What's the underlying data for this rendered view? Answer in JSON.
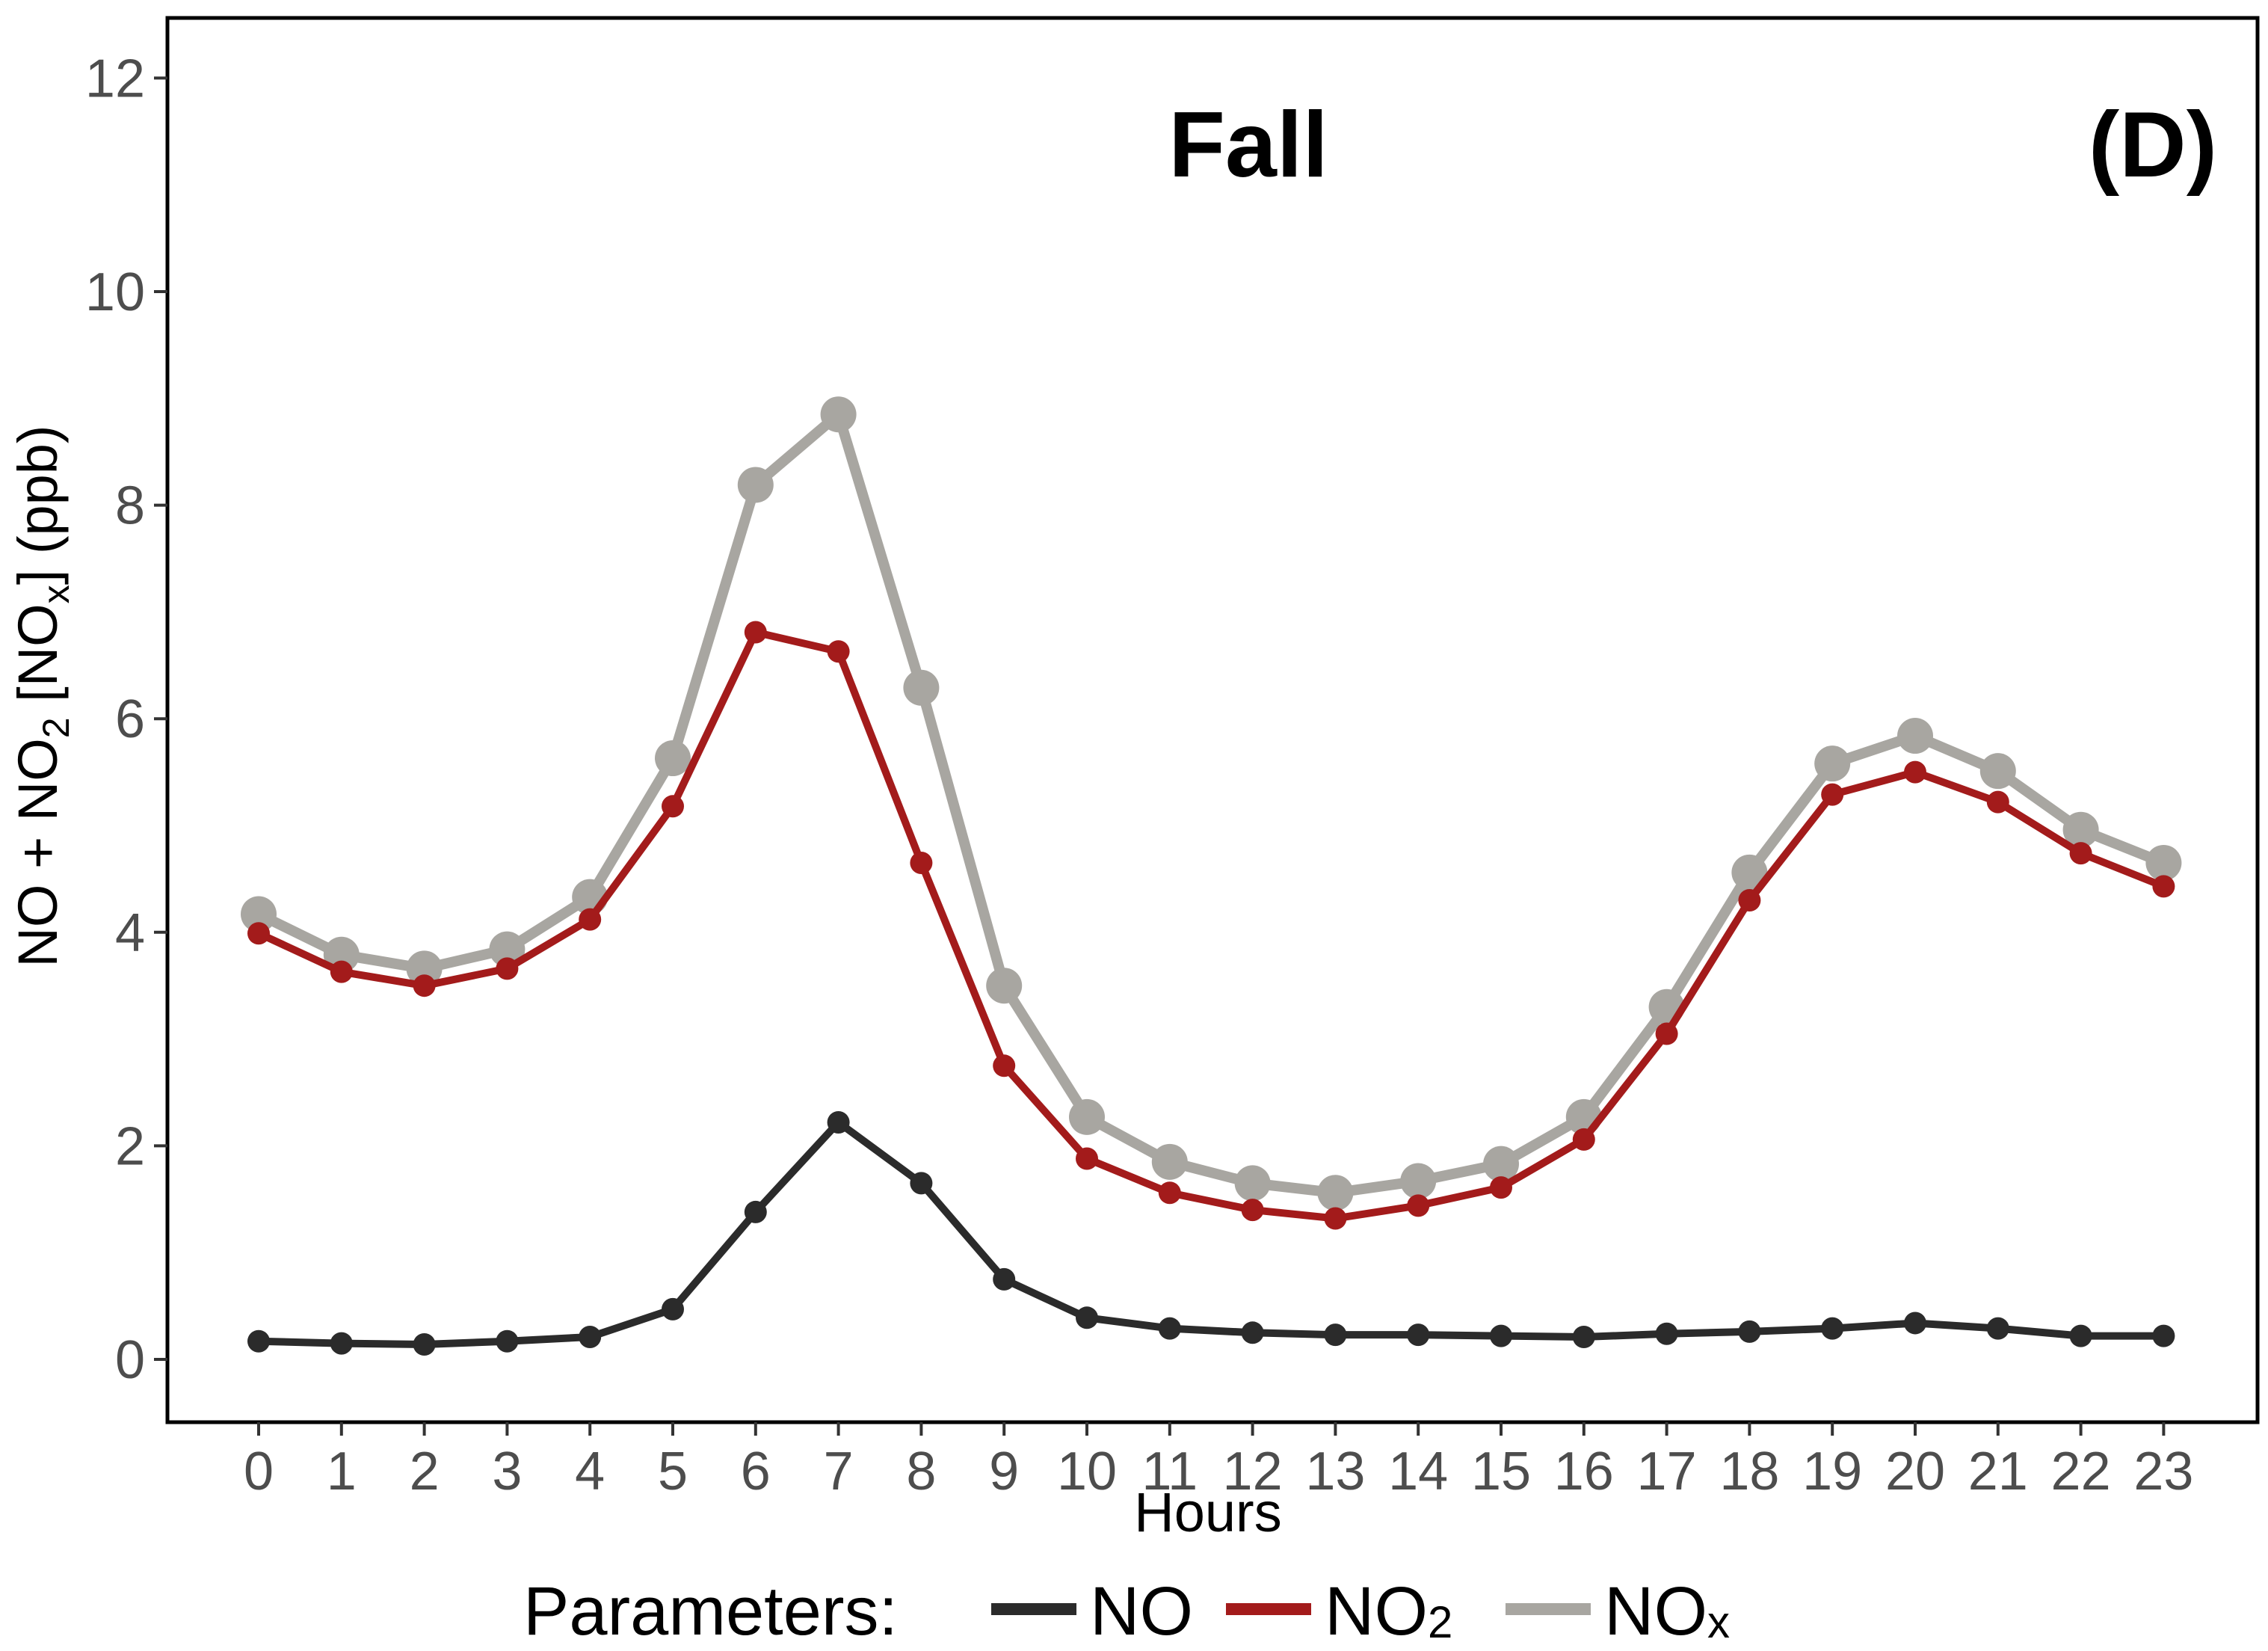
{
  "chart_data": {
    "type": "line",
    "title": "Fall",
    "panel_label": "(D)",
    "xlabel": "Hours",
    "ylabel": "NO + NO2 [NOx] (ppb)",
    "ylabel_parts": [
      "NO + NO",
      "2",
      " [NO",
      "x",
      "] (ppb)"
    ],
    "x": [
      0,
      1,
      2,
      3,
      4,
      5,
      6,
      7,
      8,
      9,
      10,
      11,
      12,
      13,
      14,
      15,
      16,
      17,
      18,
      19,
      20,
      21,
      22,
      23
    ],
    "x_ticks": [
      "0",
      "1",
      "2",
      "3",
      "4",
      "5",
      "6",
      "7",
      "8",
      "9",
      "10",
      "11",
      "12",
      "13",
      "14",
      "15",
      "16",
      "17",
      "18",
      "19",
      "20",
      "21",
      "22",
      "23"
    ],
    "ylim": [
      0,
      12
    ],
    "y_ticks": [
      0,
      2,
      4,
      6,
      8,
      10,
      12
    ],
    "grid": false,
    "legend": {
      "placement": "bottom",
      "title": "Parameters:",
      "entries": [
        {
          "base": "NO",
          "sub": ""
        },
        {
          "base": "NO",
          "sub": "2"
        },
        {
          "base": "NO",
          "sub": "x"
        }
      ]
    },
    "series": [
      {
        "name": "NO",
        "color": "#2b2b2b",
        "values": [
          0.17,
          0.15,
          0.14,
          0.17,
          0.21,
          0.47,
          1.38,
          2.22,
          1.65,
          0.75,
          0.39,
          0.29,
          0.25,
          0.23,
          0.23,
          0.22,
          0.21,
          0.24,
          0.26,
          0.29,
          0.34,
          0.29,
          0.22,
          0.22
        ]
      },
      {
        "name": "NO2",
        "color": "#a31b1b",
        "values": [
          3.99,
          3.63,
          3.5,
          3.66,
          4.12,
          5.18,
          6.81,
          6.63,
          4.65,
          2.75,
          1.88,
          1.56,
          1.4,
          1.32,
          1.44,
          1.61,
          2.06,
          3.05,
          4.3,
          5.29,
          5.5,
          5.22,
          4.74,
          4.43
        ]
      },
      {
        "name": "NOx",
        "color": "#a8a6a1",
        "values": [
          4.17,
          3.79,
          3.66,
          3.84,
          4.33,
          5.63,
          8.19,
          8.85,
          6.29,
          3.5,
          2.27,
          1.85,
          1.65,
          1.56,
          1.67,
          1.83,
          2.27,
          3.3,
          4.56,
          5.58,
          5.84,
          5.51,
          4.96,
          4.65
        ]
      }
    ]
  }
}
